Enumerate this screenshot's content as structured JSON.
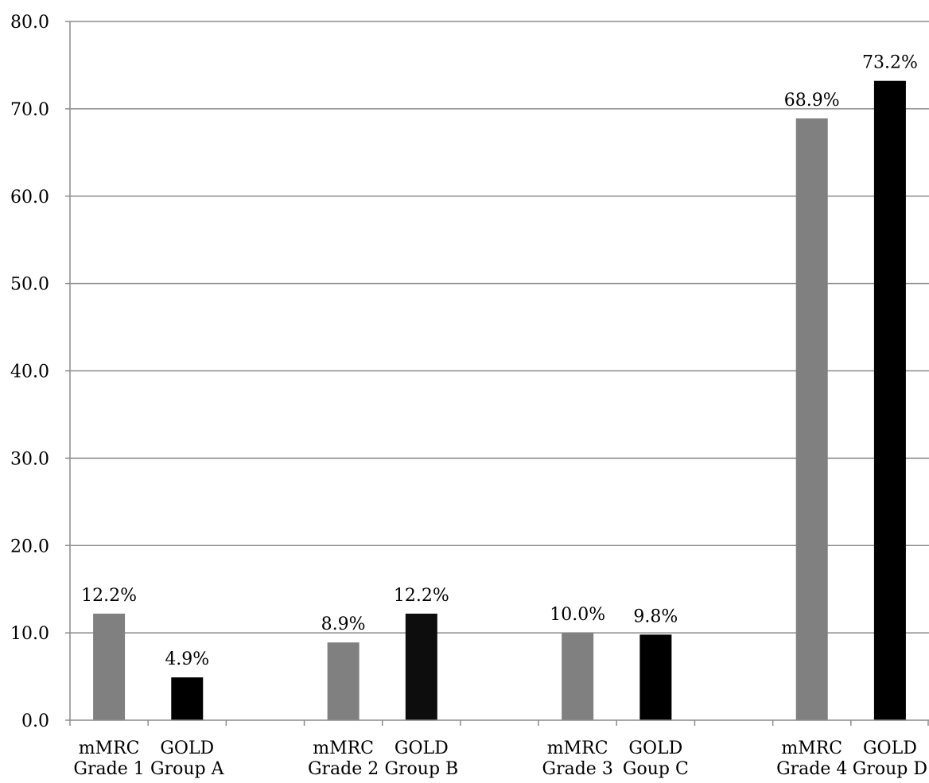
{
  "chart_data": {
    "type": "bar",
    "ylim": [
      0,
      80
    ],
    "yticks": [
      "0.0",
      "10.0",
      "20.0",
      "30.0",
      "40.0",
      "50.0",
      "60.0",
      "70.0",
      "80.0"
    ],
    "grid": true,
    "bars": [
      {
        "label_lines": [
          "mMRC",
          "Grade 1"
        ],
        "value": 12.2,
        "value_label": "12.2%",
        "color": "#808080"
      },
      {
        "label_lines": [
          "GOLD",
          "Group A"
        ],
        "value": 4.9,
        "value_label": "4.9%",
        "color": "#000000"
      },
      {
        "label_lines": [
          "mMRC",
          "Grade 2"
        ],
        "value": 8.9,
        "value_label": "8.9%",
        "color": "#808080"
      },
      {
        "label_lines": [
          "GOLD",
          "Group B"
        ],
        "value": 12.2,
        "value_label": "12.2%",
        "color": "#0d0d0d"
      },
      {
        "label_lines": [
          "mMRC",
          "Grade 3"
        ],
        "value": 10.0,
        "value_label": "10.0%",
        "color": "#808080"
      },
      {
        "label_lines": [
          "GOLD",
          "Goup C"
        ],
        "value": 9.8,
        "value_label": "9.8%",
        "color": "#000000"
      },
      {
        "label_lines": [
          "mMRC",
          "Grade 4"
        ],
        "value": 68.9,
        "value_label": "68.9%",
        "color": "#808080"
      },
      {
        "label_lines": [
          "GOLD",
          "Group D"
        ],
        "value": 73.2,
        "value_label": "73.2%",
        "color": "#000000"
      }
    ]
  }
}
